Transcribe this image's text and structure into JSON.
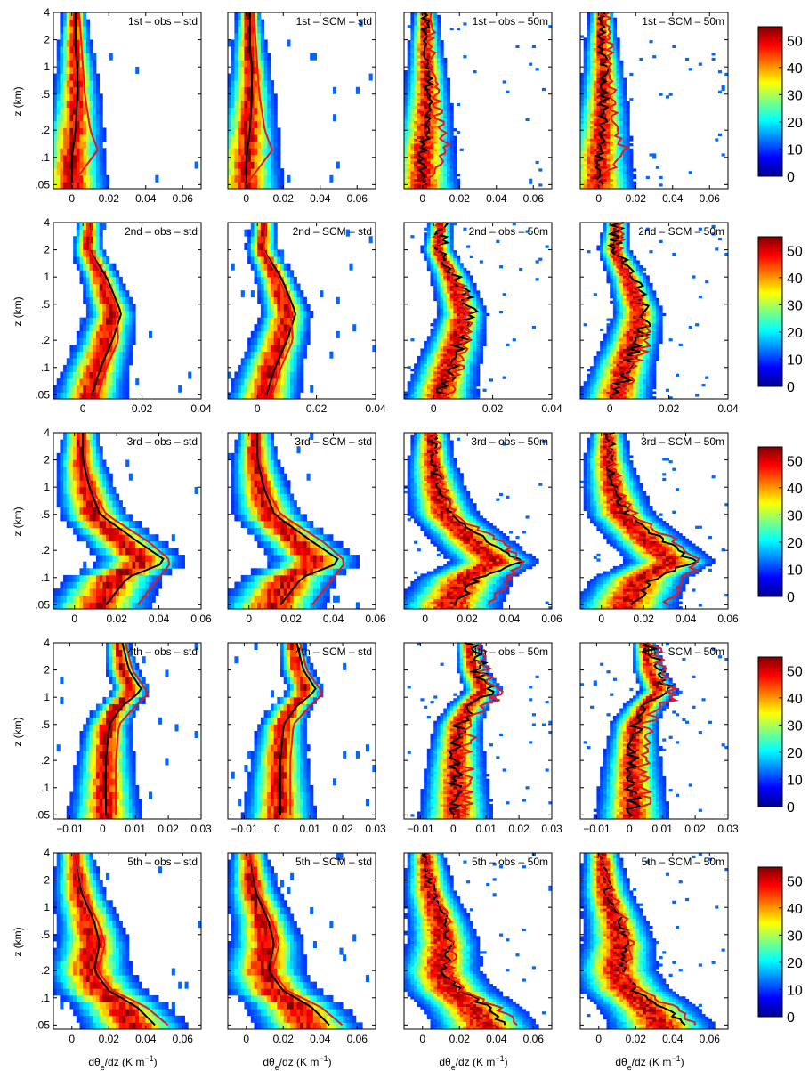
{
  "figure": {
    "ylabel": "z (km)",
    "xlabel_main": "dθ",
    "xlabel_sub": "e",
    "xlabel_rest": "/dz (K m",
    "xlabel_exp": "−1",
    "xlabel_end": ")"
  },
  "chart_data": {
    "type": "heatmap",
    "description_of_content": "Filled-contour frequency of dθe/dz versus height, with black and red mean profiles",
    "colormap": "jet",
    "colorbar_ticks": [
      "0",
      "10",
      "20",
      "30",
      "40",
      "50"
    ],
    "colorbar_range": [
      0,
      55
    ],
    "yscale": "log",
    "ylim": [
      0.045,
      4
    ],
    "yticks": [
      0.05,
      0.1,
      0.2,
      0.5,
      1,
      2,
      4
    ],
    "ytick_labels": [
      ".05",
      ".1",
      ".2",
      ".5",
      "1",
      "2",
      "4"
    ],
    "line_colors": {
      "black": "#000000",
      "red": "#e8171f"
    },
    "rows": [
      {
        "xlim": [
          -0.01,
          0.07
        ],
        "xticks": [
          0,
          0.02,
          0.04,
          0.06
        ],
        "xtick_labels": [
          "0",
          "0.02",
          "0.04",
          "0.06"
        ],
        "panels": [
          "1st – obs – std",
          "1st – SCM – std",
          "1st – obs – 50m",
          "1st – SCM – 50m"
        ],
        "black": [
          [
            0.0,
            0.05
          ],
          [
            0.0,
            0.1
          ],
          [
            0.002,
            0.2
          ],
          [
            0.003,
            0.5
          ],
          [
            0.003,
            1
          ],
          [
            0.002,
            1.5
          ],
          [
            0.002,
            2.5
          ],
          [
            0.002,
            4
          ]
        ],
        "red": [
          [
            0.0,
            0.05
          ],
          [
            0.014,
            0.12
          ],
          [
            0.01,
            0.2
          ],
          [
            0.007,
            0.5
          ],
          [
            0.006,
            1
          ],
          [
            0.005,
            2
          ],
          [
            0.004,
            4
          ]
        ]
      },
      {
        "xlim": [
          -0.01,
          0.04
        ],
        "xticks": [
          0,
          0.02,
          0.04
        ],
        "xtick_labels": [
          "0",
          "0.02",
          "0.04"
        ],
        "panels": [
          "2nd – obs – std",
          "2nd – SCM – std",
          "2nd – obs – 50m",
          "2nd – SCM – 50m"
        ],
        "black": [
          [
            0.003,
            0.05
          ],
          [
            0.006,
            0.1
          ],
          [
            0.01,
            0.2
          ],
          [
            0.013,
            0.4
          ],
          [
            0.008,
            1
          ],
          [
            0.002,
            2
          ],
          [
            0.003,
            4
          ]
        ],
        "red": [
          [
            0.005,
            0.05
          ],
          [
            0.008,
            0.1
          ],
          [
            0.012,
            0.2
          ],
          [
            0.011,
            0.5
          ],
          [
            0.007,
            1
          ],
          [
            0.002,
            2
          ],
          [
            0.003,
            4
          ]
        ]
      },
      {
        "xlim": [
          -0.01,
          0.06
        ],
        "xticks": [
          0,
          0.02,
          0.04,
          0.06
        ],
        "xtick_labels": [
          "0",
          "0.02",
          "0.04",
          "0.06"
        ],
        "panels": [
          "3rd – obs – std",
          "3rd – SCM – std",
          "3rd – obs – 50m",
          "3rd – SCM – 50m"
        ],
        "black": [
          [
            0.015,
            0.05
          ],
          [
            0.025,
            0.1
          ],
          [
            0.044,
            0.15
          ],
          [
            0.03,
            0.25
          ],
          [
            0.012,
            0.5
          ],
          [
            0.007,
            1
          ],
          [
            0.004,
            2
          ],
          [
            0.004,
            4
          ]
        ],
        "red": [
          [
            0.03,
            0.05
          ],
          [
            0.04,
            0.1
          ],
          [
            0.046,
            0.15
          ],
          [
            0.035,
            0.25
          ],
          [
            0.015,
            0.5
          ],
          [
            0.008,
            1
          ],
          [
            0.005,
            2
          ],
          [
            0.005,
            4
          ]
        ]
      },
      {
        "xlim": [
          -0.015,
          0.03
        ],
        "xticks": [
          -0.01,
          0,
          0.01,
          0.02,
          0.03
        ],
        "xtick_labels": [
          "−0.01",
          "0",
          "0.01",
          "0.02",
          "0.03"
        ],
        "panels": [
          "4th – obs – std",
          "4th – SCM – std",
          "4th – obs – 50m",
          "4th – SCM – 50m"
        ],
        "black": [
          [
            0.001,
            0.05
          ],
          [
            0.001,
            0.2
          ],
          [
            0.002,
            0.5
          ],
          [
            0.006,
            0.8
          ],
          [
            0.012,
            1.2
          ],
          [
            0.008,
            2
          ],
          [
            0.006,
            4
          ]
        ],
        "red": [
          [
            0.004,
            0.05
          ],
          [
            0.004,
            0.2
          ],
          [
            0.005,
            0.5
          ],
          [
            0.01,
            0.8
          ],
          [
            0.014,
            1.1
          ],
          [
            0.009,
            2
          ],
          [
            0.007,
            4
          ]
        ]
      },
      {
        "xlim": [
          -0.01,
          0.07
        ],
        "xticks": [
          0,
          0.02,
          0.04,
          0.06
        ],
        "xtick_labels": [
          "0",
          "0.02",
          "0.04",
          "0.06"
        ],
        "panels": [
          "5th – obs – std",
          "5th – SCM – std",
          "5th – obs – 50m",
          "5th – SCM – 50m"
        ],
        "black": [
          [
            0.045,
            0.05
          ],
          [
            0.035,
            0.08
          ],
          [
            0.02,
            0.12
          ],
          [
            0.012,
            0.2
          ],
          [
            0.015,
            0.4
          ],
          [
            0.012,
            0.7
          ],
          [
            0.005,
            1.5
          ],
          [
            0.002,
            4
          ]
        ],
        "red": [
          [
            0.052,
            0.05
          ],
          [
            0.04,
            0.08
          ],
          [
            0.022,
            0.12
          ],
          [
            0.014,
            0.2
          ],
          [
            0.018,
            0.4
          ],
          [
            0.014,
            0.7
          ],
          [
            0.006,
            1.5
          ],
          [
            0.002,
            4
          ]
        ]
      }
    ]
  }
}
